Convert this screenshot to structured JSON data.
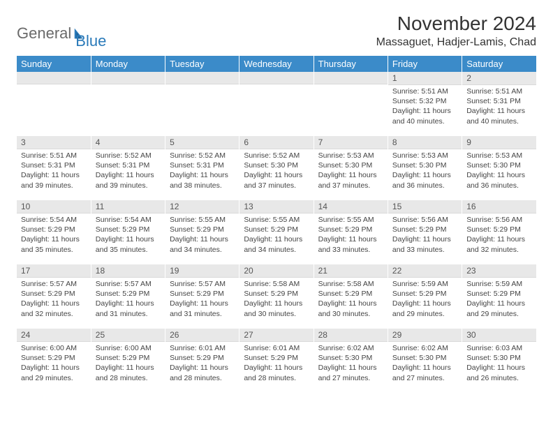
{
  "logo": {
    "word1": "General",
    "word2": "Blue"
  },
  "title": "November 2024",
  "location": "Massaguet, Hadjer-Lamis, Chad",
  "colors": {
    "header_bg": "#3b8bc9",
    "header_text": "#ffffff",
    "daynum_bg": "#e8e8e8",
    "body_text": "#444444",
    "logo_gray": "#6a6a6a",
    "logo_blue": "#2a7ab9"
  },
  "dayHeaders": [
    "Sunday",
    "Monday",
    "Tuesday",
    "Wednesday",
    "Thursday",
    "Friday",
    "Saturday"
  ],
  "weeks": [
    [
      {
        "num": "",
        "lines": []
      },
      {
        "num": "",
        "lines": []
      },
      {
        "num": "",
        "lines": []
      },
      {
        "num": "",
        "lines": []
      },
      {
        "num": "",
        "lines": []
      },
      {
        "num": "1",
        "lines": [
          "Sunrise: 5:51 AM",
          "Sunset: 5:32 PM",
          "Daylight: 11 hours and 40 minutes."
        ]
      },
      {
        "num": "2",
        "lines": [
          "Sunrise: 5:51 AM",
          "Sunset: 5:31 PM",
          "Daylight: 11 hours and 40 minutes."
        ]
      }
    ],
    [
      {
        "num": "3",
        "lines": [
          "Sunrise: 5:51 AM",
          "Sunset: 5:31 PM",
          "Daylight: 11 hours and 39 minutes."
        ]
      },
      {
        "num": "4",
        "lines": [
          "Sunrise: 5:52 AM",
          "Sunset: 5:31 PM",
          "Daylight: 11 hours and 39 minutes."
        ]
      },
      {
        "num": "5",
        "lines": [
          "Sunrise: 5:52 AM",
          "Sunset: 5:31 PM",
          "Daylight: 11 hours and 38 minutes."
        ]
      },
      {
        "num": "6",
        "lines": [
          "Sunrise: 5:52 AM",
          "Sunset: 5:30 PM",
          "Daylight: 11 hours and 37 minutes."
        ]
      },
      {
        "num": "7",
        "lines": [
          "Sunrise: 5:53 AM",
          "Sunset: 5:30 PM",
          "Daylight: 11 hours and 37 minutes."
        ]
      },
      {
        "num": "8",
        "lines": [
          "Sunrise: 5:53 AM",
          "Sunset: 5:30 PM",
          "Daylight: 11 hours and 36 minutes."
        ]
      },
      {
        "num": "9",
        "lines": [
          "Sunrise: 5:53 AM",
          "Sunset: 5:30 PM",
          "Daylight: 11 hours and 36 minutes."
        ]
      }
    ],
    [
      {
        "num": "10",
        "lines": [
          "Sunrise: 5:54 AM",
          "Sunset: 5:29 PM",
          "Daylight: 11 hours and 35 minutes."
        ]
      },
      {
        "num": "11",
        "lines": [
          "Sunrise: 5:54 AM",
          "Sunset: 5:29 PM",
          "Daylight: 11 hours and 35 minutes."
        ]
      },
      {
        "num": "12",
        "lines": [
          "Sunrise: 5:55 AM",
          "Sunset: 5:29 PM",
          "Daylight: 11 hours and 34 minutes."
        ]
      },
      {
        "num": "13",
        "lines": [
          "Sunrise: 5:55 AM",
          "Sunset: 5:29 PM",
          "Daylight: 11 hours and 34 minutes."
        ]
      },
      {
        "num": "14",
        "lines": [
          "Sunrise: 5:55 AM",
          "Sunset: 5:29 PM",
          "Daylight: 11 hours and 33 minutes."
        ]
      },
      {
        "num": "15",
        "lines": [
          "Sunrise: 5:56 AM",
          "Sunset: 5:29 PM",
          "Daylight: 11 hours and 33 minutes."
        ]
      },
      {
        "num": "16",
        "lines": [
          "Sunrise: 5:56 AM",
          "Sunset: 5:29 PM",
          "Daylight: 11 hours and 32 minutes."
        ]
      }
    ],
    [
      {
        "num": "17",
        "lines": [
          "Sunrise: 5:57 AM",
          "Sunset: 5:29 PM",
          "Daylight: 11 hours and 32 minutes."
        ]
      },
      {
        "num": "18",
        "lines": [
          "Sunrise: 5:57 AM",
          "Sunset: 5:29 PM",
          "Daylight: 11 hours and 31 minutes."
        ]
      },
      {
        "num": "19",
        "lines": [
          "Sunrise: 5:57 AM",
          "Sunset: 5:29 PM",
          "Daylight: 11 hours and 31 minutes."
        ]
      },
      {
        "num": "20",
        "lines": [
          "Sunrise: 5:58 AM",
          "Sunset: 5:29 PM",
          "Daylight: 11 hours and 30 minutes."
        ]
      },
      {
        "num": "21",
        "lines": [
          "Sunrise: 5:58 AM",
          "Sunset: 5:29 PM",
          "Daylight: 11 hours and 30 minutes."
        ]
      },
      {
        "num": "22",
        "lines": [
          "Sunrise: 5:59 AM",
          "Sunset: 5:29 PM",
          "Daylight: 11 hours and 29 minutes."
        ]
      },
      {
        "num": "23",
        "lines": [
          "Sunrise: 5:59 AM",
          "Sunset: 5:29 PM",
          "Daylight: 11 hours and 29 minutes."
        ]
      }
    ],
    [
      {
        "num": "24",
        "lines": [
          "Sunrise: 6:00 AM",
          "Sunset: 5:29 PM",
          "Daylight: 11 hours and 29 minutes."
        ]
      },
      {
        "num": "25",
        "lines": [
          "Sunrise: 6:00 AM",
          "Sunset: 5:29 PM",
          "Daylight: 11 hours and 28 minutes."
        ]
      },
      {
        "num": "26",
        "lines": [
          "Sunrise: 6:01 AM",
          "Sunset: 5:29 PM",
          "Daylight: 11 hours and 28 minutes."
        ]
      },
      {
        "num": "27",
        "lines": [
          "Sunrise: 6:01 AM",
          "Sunset: 5:29 PM",
          "Daylight: 11 hours and 28 minutes."
        ]
      },
      {
        "num": "28",
        "lines": [
          "Sunrise: 6:02 AM",
          "Sunset: 5:30 PM",
          "Daylight: 11 hours and 27 minutes."
        ]
      },
      {
        "num": "29",
        "lines": [
          "Sunrise: 6:02 AM",
          "Sunset: 5:30 PM",
          "Daylight: 11 hours and 27 minutes."
        ]
      },
      {
        "num": "30",
        "lines": [
          "Sunrise: 6:03 AM",
          "Sunset: 5:30 PM",
          "Daylight: 11 hours and 26 minutes."
        ]
      }
    ]
  ]
}
